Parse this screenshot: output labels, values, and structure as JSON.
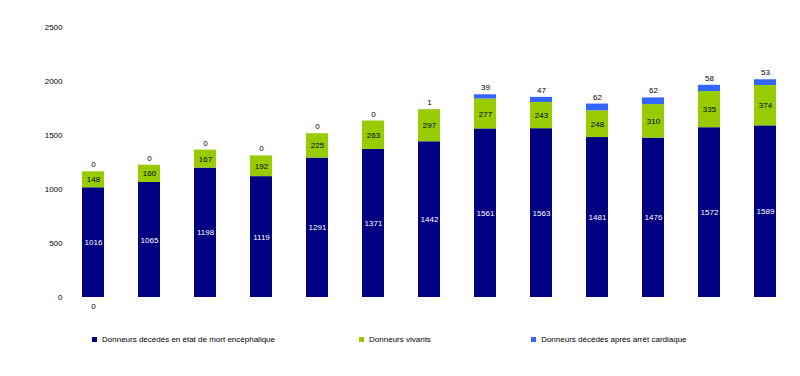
{
  "chart_data": {
    "type": "bar",
    "stacked": true,
    "data_labels": true,
    "grid": false,
    "legend": "bottom",
    "categories": [
      "0",
      null,
      null,
      null,
      null,
      null,
      null,
      null,
      null,
      null,
      null,
      null,
      null
    ],
    "series": [
      {
        "name": "Donneurs décédés en état de mort encéphalique",
        "color": "#000080",
        "values": [
          1016,
          1065,
          1198,
          1119,
          1291,
          1371,
          1442,
          1561,
          1563,
          1481,
          1476,
          1572,
          1589
        ]
      },
      {
        "name": "Donneurs vivants",
        "color": "#99cc00",
        "values": [
          148,
          160,
          167,
          192,
          225,
          263,
          297,
          277,
          243,
          248,
          310,
          335,
          374
        ]
      },
      {
        "name": "Donneurs décédés après arrêt cardiaque",
        "color": "#3366ff",
        "values": [
          0,
          0,
          0,
          0,
          0,
          0,
          1,
          39,
          47,
          62,
          62,
          58,
          53
        ]
      }
    ],
    "ylim": [
      0,
      2500
    ],
    "yticks": [
      0,
      500,
      1000,
      1500,
      2000,
      2500
    ]
  }
}
